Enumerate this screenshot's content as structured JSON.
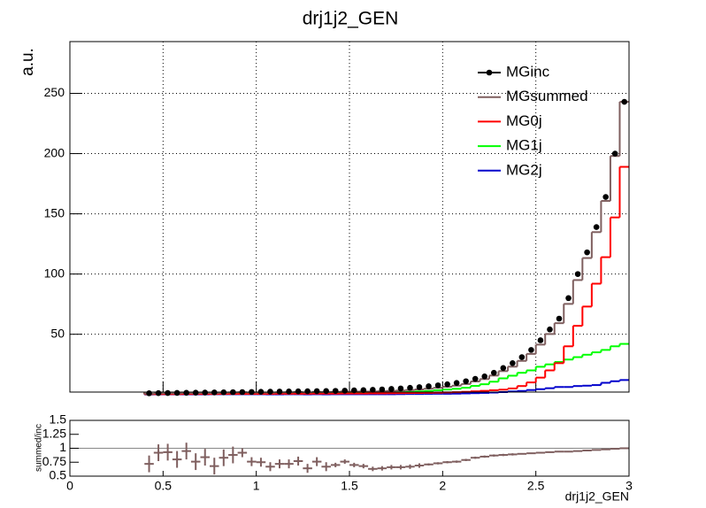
{
  "chart_data": {
    "type": "histogram",
    "title": "drj1j2_GEN",
    "ylabel": "a.u.",
    "bins": [
      0.4,
      0.45,
      0.5,
      0.55,
      0.6,
      0.65,
      0.7,
      0.75,
      0.8,
      0.85,
      0.9,
      0.95,
      1.0,
      1.05,
      1.1,
      1.15,
      1.2,
      1.25,
      1.3,
      1.35,
      1.4,
      1.45,
      1.5,
      1.55,
      1.6,
      1.65,
      1.7,
      1.75,
      1.8,
      1.85,
      1.9,
      1.95,
      2.0,
      2.05,
      2.1,
      2.15,
      2.2,
      2.25,
      2.3,
      2.35,
      2.4,
      2.45,
      2.5,
      2.55,
      2.6,
      2.65,
      2.7,
      2.75,
      2.8,
      2.85,
      2.9,
      2.95,
      3.0
    ],
    "xlim": [
      0,
      3
    ],
    "xticks": [
      0,
      0.5,
      1,
      1.5,
      2,
      2.5,
      3
    ],
    "ylim": [
      2,
      293
    ],
    "yticks": [
      50,
      100,
      150,
      200,
      250
    ],
    "grid": true,
    "series": [
      {
        "name": "MGinc",
        "color": "#000000",
        "style": "markers",
        "values": [
          1.0,
          1.1,
          1.2,
          1.3,
          1.4,
          1.5,
          1.6,
          1.7,
          1.8,
          1.9,
          2.0,
          2.1,
          2.2,
          2.3,
          2.4,
          2.5,
          2.6,
          2.7,
          2.8,
          2.9,
          3.0,
          3.2,
          3.4,
          3.6,
          3.9,
          4.2,
          4.6,
          5.0,
          5.5,
          6.1,
          6.8,
          7.6,
          8.5,
          9.6,
          11,
          13,
          15,
          18,
          22,
          26,
          31,
          37,
          45,
          54,
          63,
          80,
          100,
          118,
          139,
          164,
          200,
          243
        ]
      },
      {
        "name": "MGsummed",
        "color": "#7f5f5f",
        "style": "step",
        "values": [
          0.72,
          1.01,
          1.12,
          1.04,
          1.33,
          1.14,
          1.34,
          1.16,
          1.49,
          1.67,
          1.84,
          1.6,
          1.65,
          1.54,
          1.73,
          1.8,
          2.0,
          1.73,
          2.13,
          1.94,
          2.1,
          2.43,
          2.38,
          2.45,
          2.46,
          2.69,
          3.04,
          3.3,
          3.69,
          4.21,
          4.83,
          5.55,
          6.38,
          7.3,
          8.7,
          10.8,
          12.8,
          15.7,
          19.4,
          23.1,
          27.9,
          33.7,
          41.4,
          50.2,
          59.2,
          75.2,
          95,
          113.3,
          134.8,
          160.7,
          198,
          243
        ]
      },
      {
        "name": "MG0j",
        "color": "#ff0000",
        "style": "step",
        "values": [
          0.3,
          0.3,
          0.3,
          0.3,
          0.4,
          0.4,
          0.4,
          0.4,
          0.5,
          0.5,
          0.5,
          0.5,
          0.5,
          0.5,
          0.6,
          0.6,
          0.6,
          0.6,
          0.7,
          0.7,
          0.7,
          0.8,
          0.8,
          0.8,
          0.9,
          0.9,
          1.0,
          1.1,
          1.2,
          1.3,
          1.4,
          1.5,
          1.7,
          1.9,
          2.2,
          2.6,
          3,
          3.5,
          4,
          5,
          7,
          10,
          14,
          20,
          26,
          40,
          57,
          73,
          92,
          114,
          147,
          189
        ]
      },
      {
        "name": "MG1j",
        "color": "#00ff00",
        "style": "step",
        "values": [
          0.4,
          0.6,
          0.7,
          0.6,
          0.8,
          0.6,
          0.8,
          0.6,
          0.8,
          1.0,
          1.1,
          0.9,
          1.0,
          0.9,
          1.0,
          1.0,
          1.2,
          1.0,
          1.2,
          1.1,
          1.2,
          1.4,
          1.4,
          1.4,
          1.4,
          1.6,
          1.8,
          1.9,
          2.1,
          2.5,
          2.9,
          3.5,
          4.1,
          4.7,
          5.6,
          7.1,
          8.5,
          10.6,
          13.4,
          15.6,
          18,
          20,
          23,
          25,
          27,
          29,
          31,
          33,
          35,
          37,
          40,
          42
        ]
      },
      {
        "name": "MG2j",
        "color": "#0000cc",
        "style": "step",
        "values": [
          0.02,
          0.1,
          0.1,
          0.1,
          0.1,
          0.1,
          0.1,
          0.2,
          0.2,
          0.2,
          0.2,
          0.2,
          0.2,
          0.1,
          0.1,
          0.2,
          0.2,
          0.1,
          0.2,
          0.1,
          0.2,
          0.2,
          0.2,
          0.2,
          0.2,
          0.2,
          0.2,
          0.3,
          0.4,
          0.4,
          0.5,
          0.6,
          0.58,
          0.7,
          0.9,
          1.1,
          1.3,
          1.6,
          2,
          2.5,
          2.9,
          3.7,
          4.4,
          5.2,
          6.2,
          6.2,
          7,
          7.3,
          7.8,
          9.7,
          11,
          12
        ]
      }
    ],
    "ratio": {
      "xlabel": "drj1j2_GEN",
      "ylabel": "summed/inc",
      "color": "#7f5f5f",
      "ylim": [
        0.5,
        1.5
      ],
      "yticks": [
        0.5,
        0.75,
        1,
        1.25,
        1.5
      ],
      "values": [
        0.72,
        0.92,
        0.93,
        0.8,
        0.95,
        0.76,
        0.84,
        0.68,
        0.83,
        0.88,
        0.92,
        0.76,
        0.75,
        0.67,
        0.72,
        0.72,
        0.77,
        0.64,
        0.76,
        0.67,
        0.7,
        0.76,
        0.7,
        0.68,
        0.63,
        0.64,
        0.66,
        0.66,
        0.67,
        0.69,
        0.71,
        0.73,
        0.75,
        0.76,
        0.79,
        0.83,
        0.85,
        0.87,
        0.88,
        0.89,
        0.9,
        0.91,
        0.92,
        0.93,
        0.94,
        0.94,
        0.95,
        0.96,
        0.97,
        0.98,
        0.99,
        1.0
      ],
      "errors": [
        0.15,
        0.15,
        0.15,
        0.15,
        0.15,
        0.15,
        0.15,
        0.15,
        0.15,
        0.15,
        0.08,
        0.08,
        0.08,
        0.08,
        0.08,
        0.08,
        0.08,
        0.08,
        0.08,
        0.08,
        0.04,
        0.04,
        0.04,
        0.04,
        0.04,
        0.04,
        0.04,
        0.04,
        0.04,
        0.04,
        0.02,
        0.02,
        0.02,
        0.02,
        0.02,
        0.02,
        0.02,
        0.02,
        0.02,
        0.02,
        0.01,
        0.01,
        0.01,
        0.01,
        0.01,
        0.01,
        0.01,
        0.01,
        0.01,
        0.01,
        0.01,
        0.01
      ]
    }
  }
}
